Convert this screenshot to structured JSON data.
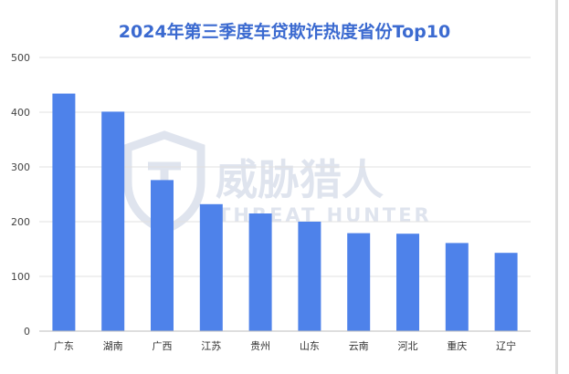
{
  "colors": {
    "bar": "#4e82ea",
    "title": "#3b6ad0",
    "grid": "#e0e0e0",
    "axis": "#bdbdbd",
    "watermark": "#dfe4ee"
  },
  "watermark": {
    "brand_cn": "威胁猎人",
    "brand_en": "THREAT HUNTER",
    "icon": "shield-logo-icon"
  },
  "chart_data": {
    "type": "bar",
    "title": "2024年第三季度车贷欺诈热度省份Top10",
    "xlabel": "",
    "ylabel": "",
    "categories": [
      "广东",
      "湖南",
      "广西",
      "江苏",
      "贵州",
      "山东",
      "云南",
      "河北",
      "重庆",
      "辽宁"
    ],
    "values": [
      434,
      401,
      276,
      232,
      215,
      200,
      179,
      178,
      161,
      143
    ],
    "ylim": [
      0,
      500
    ],
    "yticks": [
      "0",
      "100",
      "200",
      "300",
      "400",
      "500"
    ],
    "grid": true,
    "legend": "none"
  }
}
